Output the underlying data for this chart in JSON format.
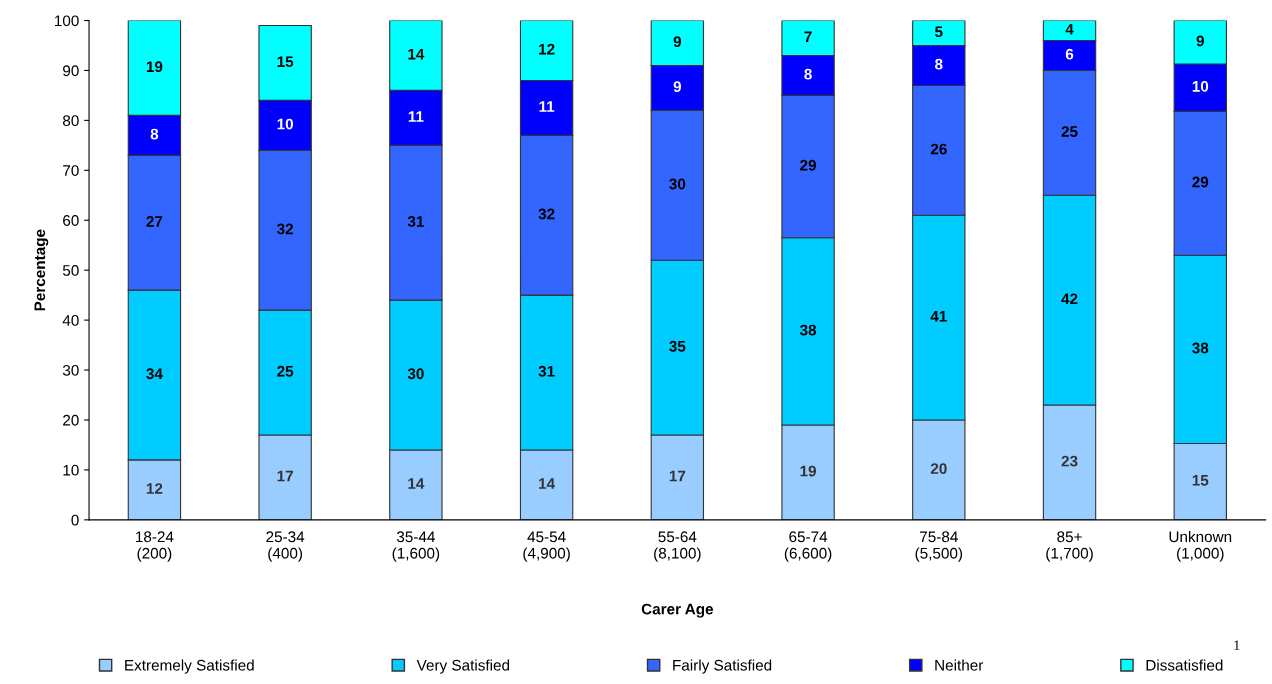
{
  "chart_data": {
    "type": "bar",
    "stacked": true,
    "xlabel": "Carer Age",
    "ylabel": "Percentage",
    "categories": [
      "18-24\n(200)",
      "25-34\n(400)",
      "35-44\n(1,600)",
      "45-54\n(4,900)",
      "55-64\n(8,100)",
      "65-74\n(6,600)",
      "75-84\n(5,500)",
      "85+\n(1,700)",
      "Unknown\n(1,000)"
    ],
    "series": [
      {
        "name": "Extremely Satisfied",
        "color": "#99ccff",
        "values": [
          12,
          17,
          14,
          14,
          17,
          19,
          20,
          23,
          15.3
        ],
        "value_labels": [
          "12",
          "17",
          "14",
          "14",
          "17",
          "19",
          "20",
          "23",
          "15"
        ]
      },
      {
        "name": "Very Satisfied",
        "color": "#00ccff",
        "values": [
          34,
          25,
          30,
          31,
          35,
          37.5,
          41,
          42,
          37.7
        ],
        "value_labels": [
          "34",
          "25",
          "30",
          "31",
          "35",
          "38",
          "41",
          "42",
          "38"
        ]
      },
      {
        "name": "Fairly Satisfied",
        "color": "#3366ff",
        "values": [
          27,
          32,
          31,
          32,
          30,
          28.5,
          26,
          25,
          28.8
        ],
        "value_labels": [
          "27",
          "32",
          "31",
          "32",
          "30",
          "29",
          "26",
          "25",
          "29"
        ]
      },
      {
        "name": "Neither",
        "color": "#0000ff",
        "values": [
          8,
          10,
          11,
          11,
          9,
          8,
          8,
          6,
          9.5
        ],
        "value_labels": [
          "8",
          "10",
          "11",
          "11",
          "9",
          "8",
          "8",
          "6",
          "10"
        ]
      },
      {
        "name": "Dissatisfied",
        "color": "#00ffff",
        "values": [
          19,
          15,
          14,
          12,
          9,
          7,
          5,
          4,
          8.7
        ],
        "value_labels": [
          "19",
          "15",
          "14",
          "12",
          "9",
          "7",
          "5",
          "4",
          "9"
        ]
      }
    ],
    "ylim": [
      0,
      100
    ],
    "yticks": [
      0,
      10,
      20,
      30,
      40,
      50,
      60,
      70,
      80,
      90,
      100
    ],
    "grid": false,
    "legend": "bottom",
    "annotations": [
      "1"
    ]
  }
}
